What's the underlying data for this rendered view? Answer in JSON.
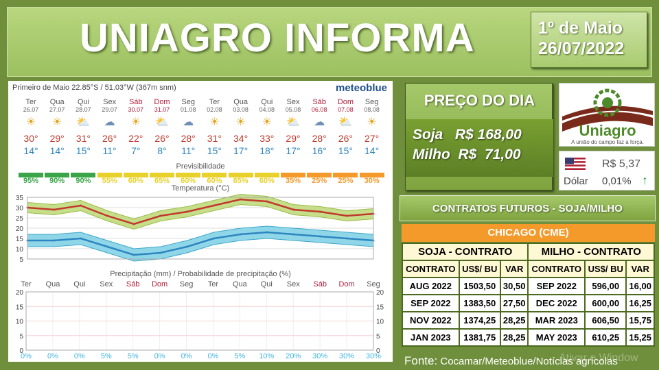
{
  "title": "UNIAGRO INFORMA",
  "date": {
    "line1": "1º de Maio",
    "line2": "26/07/2022"
  },
  "forecast": {
    "location": "Primeiro de Maio  22.85°S / 51.03°W (367m snm)",
    "brand": "meteoblue",
    "days": [
      {
        "name": "Ter",
        "date": "26.07",
        "max": "30°",
        "min": "14°",
        "icon": "sun-icon",
        "pred": "95%"
      },
      {
        "name": "Qua",
        "date": "27.07",
        "max": "29°",
        "min": "14°",
        "icon": "sun-icon",
        "pred": "90%"
      },
      {
        "name": "Qui",
        "date": "28.07",
        "max": "31°",
        "min": "15°",
        "icon": "sun-cloud-icon",
        "pred": "90%"
      },
      {
        "name": "Sex",
        "date": "29.07",
        "max": "26°",
        "min": "11°",
        "icon": "cloud-icon",
        "pred": "55%"
      },
      {
        "name": "Sáb",
        "date": "30.07",
        "max": "22°",
        "min": "7°",
        "icon": "sun-icon",
        "pred": "60%"
      },
      {
        "name": "Dom",
        "date": "31.07",
        "max": "26°",
        "min": "8°",
        "icon": "sun-cloud-icon",
        "pred": "65%"
      },
      {
        "name": "Seg",
        "date": "01.08",
        "max": "28°",
        "min": "11°",
        "icon": "cloud-icon",
        "pred": "60%"
      },
      {
        "name": "Ter",
        "date": "02.08",
        "max": "31°",
        "min": "15°",
        "icon": "sun-icon",
        "pred": "60%"
      },
      {
        "name": "Qua",
        "date": "03.08",
        "max": "34°",
        "min": "17°",
        "icon": "sun-icon",
        "pred": "65%"
      },
      {
        "name": "Qui",
        "date": "04.08",
        "max": "33°",
        "min": "18°",
        "icon": "sun-icon",
        "pred": "60%"
      },
      {
        "name": "Sex",
        "date": "05.08",
        "max": "29°",
        "min": "17°",
        "icon": "sun-cloud-icon",
        "pred": "35%"
      },
      {
        "name": "Sáb",
        "date": "06.08",
        "max": "28°",
        "min": "16°",
        "icon": "cloud-icon",
        "pred": "25%"
      },
      {
        "name": "Dom",
        "date": "07.08",
        "max": "26°",
        "min": "15°",
        "icon": "sun-cloud-icon",
        "pred": "25%"
      },
      {
        "name": "Seg",
        "date": "08.08",
        "max": "27°",
        "min": "14°",
        "icon": "sun-icon",
        "pred": "30%"
      }
    ],
    "predict_label": "Previsibilidade",
    "temp_label": "Temperatura (°C)",
    "precip_label": "Precipitação (mm) / Probabilidade de precipitação (%)",
    "precip_prob": [
      "0%",
      "0%",
      "0%",
      "5%",
      "5%",
      "0%",
      "0%",
      "0%",
      "5%",
      "10%",
      "20%",
      "30%",
      "30%",
      "30%"
    ],
    "colors": {
      "green": "#3aa548",
      "yellow": "#e8d12a",
      "orange": "#f39a2a",
      "max": "#c0392b",
      "min": "#2e86c1"
    }
  },
  "chart_data": [
    {
      "type": "line",
      "title": "Temperatura (°C)",
      "categories": [
        "Ter",
        "Qua",
        "Qui",
        "Sex",
        "Sáb",
        "Dom",
        "Seg",
        "Ter",
        "Qua",
        "Qui",
        "Sex",
        "Sáb",
        "Dom",
        "Seg"
      ],
      "series": [
        {
          "name": "max",
          "values": [
            30,
            29,
            31,
            26,
            22,
            26,
            28,
            31,
            34,
            33,
            29,
            28,
            26,
            27
          ]
        },
        {
          "name": "min",
          "values": [
            14,
            14,
            15,
            11,
            7,
            8,
            11,
            15,
            17,
            18,
            17,
            16,
            15,
            14
          ]
        }
      ],
      "ylim": [
        5,
        35
      ],
      "yticks": [
        5,
        10,
        15,
        20,
        25,
        30,
        35
      ]
    },
    {
      "type": "bar",
      "title": "Precipitação (mm) / Probabilidade de precipitação (%)",
      "categories": [
        "Ter",
        "Qua",
        "Qui",
        "Sex",
        "Sáb",
        "Dom",
        "Seg",
        "Ter",
        "Qua",
        "Qui",
        "Sex",
        "Sáb",
        "Dom",
        "Seg"
      ],
      "series": [
        {
          "values": [
            0,
            0,
            0,
            0,
            0,
            0,
            0,
            0,
            0,
            0,
            0,
            0,
            0,
            0
          ]
        }
      ],
      "ylim": [
        0,
        20
      ],
      "yticks": [
        0,
        5,
        10,
        15,
        20
      ]
    }
  ],
  "preco": {
    "heading": "PREÇO DO DIA",
    "soja": "Soja   R$ 168,00",
    "milho": "Milho  R$  71,00"
  },
  "logo": {
    "name": "Uniagro",
    "tagline": "A união do campo faz a força."
  },
  "dolar": {
    "value": "R$ 5,37",
    "label": "Dólar",
    "change": "0,01%"
  },
  "contratos": {
    "heading": "CONTRATOS  FUTUROS  - SOJA/MILHO",
    "exchange": "CHICAGO (CME)",
    "groups": [
      "SOJA - CONTRATO",
      "MILHO - CONTRATO"
    ],
    "cols": [
      "CONTRATO",
      "US$/ BU",
      "VAR",
      "CONTRATO",
      "US$/ BU",
      "VAR"
    ],
    "rows": [
      [
        "AUG 2022",
        "1503,50",
        "30,50",
        "SEP 2022",
        "596,00",
        "16,00"
      ],
      [
        "SEP 2022",
        "1383,50",
        "27,50",
        "DEC 2022",
        "600,00",
        "16,25"
      ],
      [
        "NOV 2022",
        "1374,25",
        "28,25",
        "MAR 2023",
        "606,50",
        "15,75"
      ],
      [
        "JAN 2023",
        "1381,75",
        "28,25",
        "MAY 2023",
        "610,25",
        "15,25"
      ]
    ]
  },
  "fonte": {
    "label": "Fonte:",
    "text": " Cocamar/Meteoblue/Notícias agrícolas"
  },
  "watermark": "Ativar o Window"
}
